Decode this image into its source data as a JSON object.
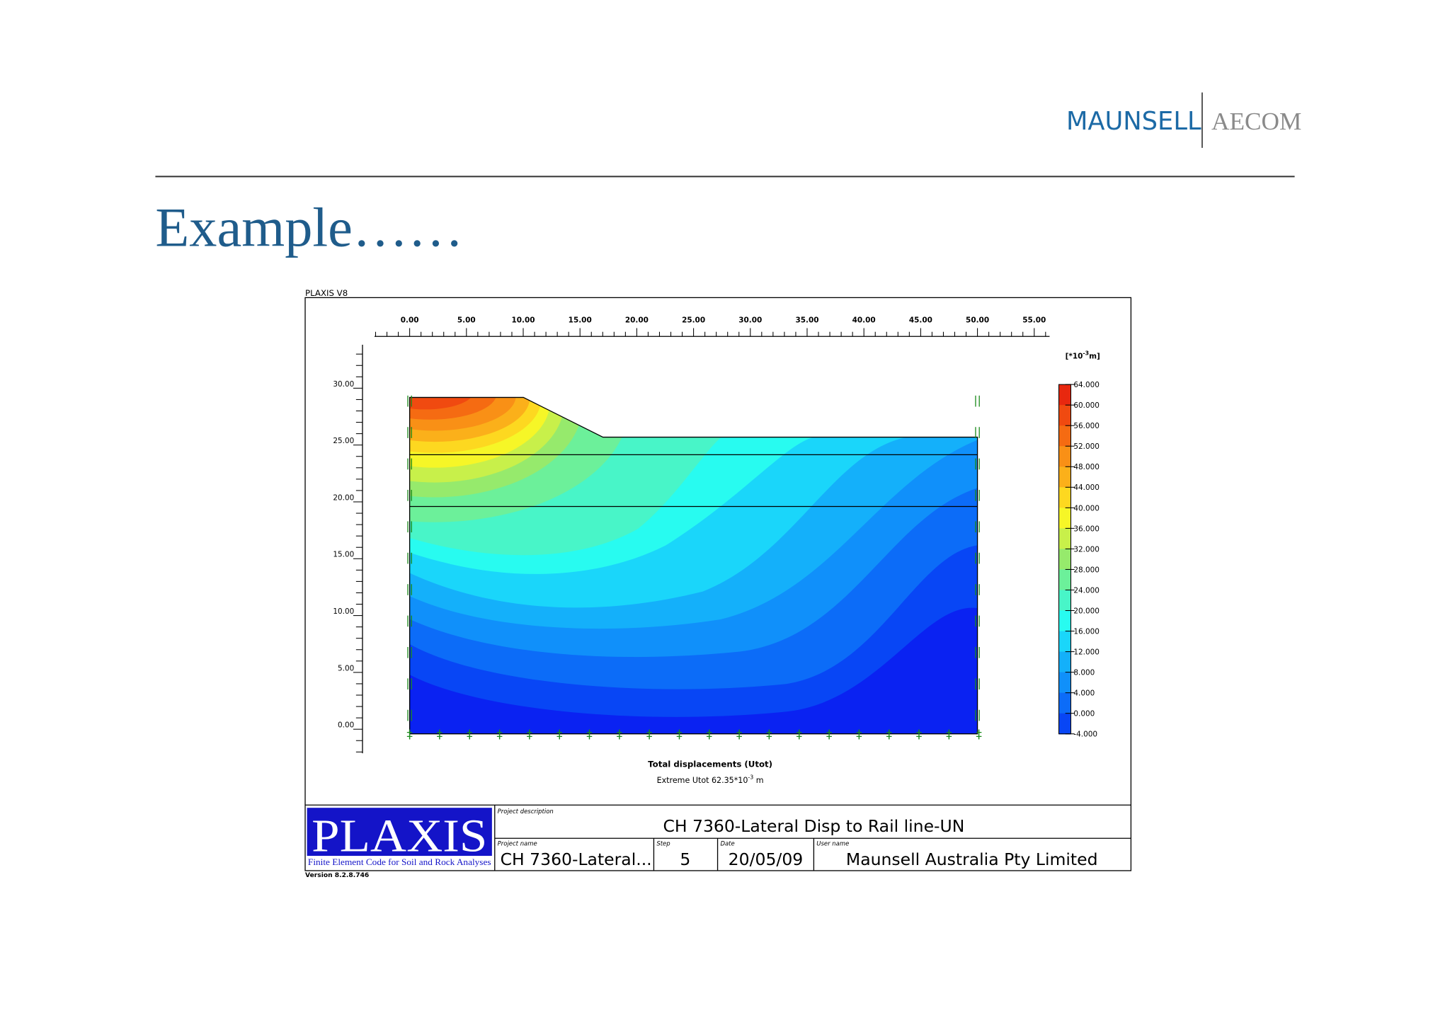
{
  "header": {
    "brand_primary": "MAUNSELL",
    "brand_secondary": "AECOM"
  },
  "title": "Example……",
  "figure": {
    "software": "PLAXIS V8",
    "x_axis_labels": [
      "0.00",
      "5.00",
      "10.00",
      "15.00",
      "20.00",
      "25.00",
      "30.00",
      "35.00",
      "40.00",
      "45.00",
      "50.00",
      "55.00"
    ],
    "y_axis_labels": [
      "0.00",
      "5.00",
      "10.00",
      "15.00",
      "20.00",
      "25.00",
      "30.00"
    ],
    "legend_unit": {
      "prefix": "[*10",
      "exponent": "-3",
      "suffix": "m]"
    },
    "legend_labels": [
      "64.000",
      "60.000",
      "56.000",
      "52.000",
      "48.000",
      "44.000",
      "40.000",
      "36.000",
      "32.000",
      "28.000",
      "24.000",
      "20.000",
      "16.000",
      "12.000",
      "8.000",
      "4.000",
      "0.000",
      "-4.000"
    ],
    "caption": "Total displacements (Utot)",
    "extreme": {
      "text": "Extreme Utot 62.35*10",
      "exponent": "-3",
      "suffix": " m"
    }
  },
  "title_block": {
    "logo": "PLAXIS",
    "logo_subtitle": "Finite Element Code for Soil and Rock Analyses",
    "version": "Version 8.2.8.746",
    "project_description_label": "Project description",
    "project_description": "CH 7360-Lateral Disp to Rail line-UN",
    "project_name_label": "Project name",
    "project_name": "CH 7360-Lateral...",
    "step_label": "Step",
    "step": "5",
    "date_label": "Date",
    "date": "20/05/09",
    "user_name_label": "User name",
    "user_name": "Maunsell Australia Pty Limited"
  }
}
